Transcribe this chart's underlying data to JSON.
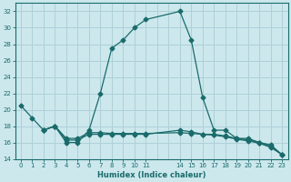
{
  "xlabel": "Humidex (Indice chaleur)",
  "bg_color": "#cce8ed",
  "grid_color": "#aed0d8",
  "line_color": "#1a6b6b",
  "ylim": [
    14,
    33
  ],
  "xlim": [
    -0.5,
    23.5
  ],
  "yticks": [
    14,
    16,
    18,
    20,
    22,
    24,
    26,
    28,
    30,
    32
  ],
  "line1_x": [
    0,
    1,
    2,
    3,
    4,
    5,
    6,
    7,
    8,
    9,
    10,
    11,
    14,
    15,
    16,
    17,
    18,
    19,
    20,
    21,
    22,
    23
  ],
  "line1_y": [
    20.5,
    19.0,
    17.5,
    18.0,
    16.0,
    16.0,
    17.5,
    22.0,
    27.5,
    28.5,
    30.0,
    31.0,
    32.0,
    28.5,
    21.5,
    17.5,
    17.5,
    16.5,
    16.5,
    16.0,
    15.5,
    14.5
  ],
  "line2_x": [
    2,
    3,
    4,
    5,
    6,
    7,
    8,
    9,
    10,
    11,
    14,
    15,
    16,
    17,
    18,
    19,
    20,
    21,
    22,
    23
  ],
  "line2_y": [
    17.5,
    18.0,
    16.3,
    16.3,
    17.0,
    17.0,
    17.0,
    17.0,
    17.0,
    17.0,
    17.5,
    17.3,
    17.0,
    17.0,
    16.8,
    16.5,
    16.3,
    16.0,
    15.7,
    14.5
  ],
  "line3_x": [
    2,
    3,
    4,
    5,
    6,
    7,
    8,
    9,
    10,
    11,
    14,
    15,
    16,
    17,
    18,
    19,
    20,
    21,
    22,
    23
  ],
  "line3_y": [
    17.5,
    18.0,
    16.5,
    16.5,
    17.2,
    17.2,
    17.1,
    17.1,
    17.1,
    17.1,
    17.2,
    17.1,
    17.0,
    16.9,
    16.7,
    16.4,
    16.2,
    15.9,
    15.4,
    14.5
  ],
  "xtick_positions": [
    0,
    1,
    2,
    3,
    4,
    5,
    6,
    7,
    8,
    9,
    10,
    11,
    14,
    15,
    16,
    17,
    18,
    19,
    20,
    21,
    22,
    23
  ],
  "xtick_labels": [
    "0",
    "1",
    "2",
    "3",
    "4",
    "5",
    "6",
    "7",
    "8",
    "9",
    "10",
    "11",
    "14",
    "15",
    "16",
    "17",
    "18",
    "19",
    "20",
    "21",
    "22",
    "23"
  ]
}
